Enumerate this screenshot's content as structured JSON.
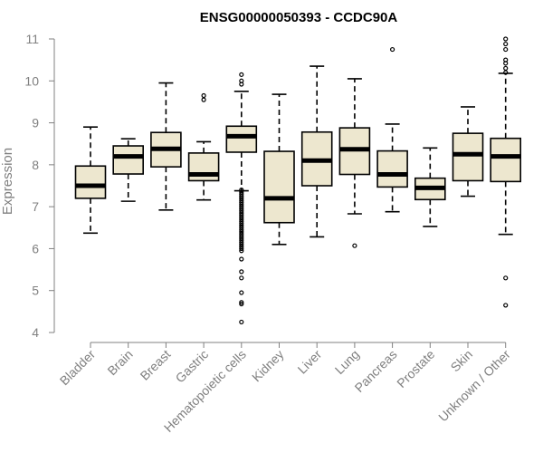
{
  "chart_data": {
    "type": "boxplot",
    "title": "ENSG00000050393 - CCDC90A",
    "xlabel": "",
    "ylabel": "Expression",
    "ylim": [
      4,
      11
    ],
    "yticks": [
      4,
      5,
      6,
      7,
      8,
      9,
      10,
      11
    ],
    "grid": false,
    "box_fill": "#EDE7CF",
    "axis_color": "#808080",
    "categories": [
      "Bladder",
      "Brain",
      "Breast",
      "Gastric",
      "Hematopoietic cells",
      "Kidney",
      "Liver",
      "Lung",
      "Pancreas",
      "Prostate",
      "Skin",
      "Unknown / Other"
    ],
    "boxes": [
      {
        "category": "Bladder",
        "whisker_low": 6.37,
        "q1": 7.2,
        "median": 7.5,
        "q3": 7.97,
        "whisker_high": 8.9,
        "outliers": []
      },
      {
        "category": "Brain",
        "whisker_low": 7.13,
        "q1": 7.78,
        "median": 8.2,
        "q3": 8.45,
        "whisker_high": 8.62,
        "outliers": []
      },
      {
        "category": "Breast",
        "whisker_low": 6.92,
        "q1": 7.95,
        "median": 8.38,
        "q3": 8.77,
        "whisker_high": 9.95,
        "outliers": []
      },
      {
        "category": "Gastric",
        "whisker_low": 7.16,
        "q1": 7.62,
        "median": 7.77,
        "q3": 8.28,
        "whisker_high": 8.55,
        "outliers": [
          9.55,
          9.65
        ]
      },
      {
        "category": "Hematopoietic cells",
        "whisker_low": 7.38,
        "q1": 8.3,
        "median": 8.68,
        "q3": 8.92,
        "whisker_high": 9.75,
        "outliers": [
          10.15,
          10.0,
          9.92,
          7.4,
          7.35,
          7.3,
          7.25,
          7.2,
          7.15,
          7.1,
          7.05,
          7.0,
          6.95,
          6.9,
          6.85,
          6.8,
          6.75,
          6.7,
          6.65,
          6.6,
          6.55,
          6.5,
          6.45,
          6.4,
          6.35,
          6.3,
          6.25,
          6.2,
          6.15,
          6.1,
          6.05,
          6.0,
          5.95,
          5.75,
          5.45,
          5.3,
          4.95,
          4.72,
          4.68,
          4.25
        ]
      },
      {
        "category": "Kidney",
        "whisker_low": 6.1,
        "q1": 6.62,
        "median": 7.2,
        "q3": 8.32,
        "whisker_high": 9.68,
        "outliers": []
      },
      {
        "category": "Liver",
        "whisker_low": 6.28,
        "q1": 7.5,
        "median": 8.1,
        "q3": 8.78,
        "whisker_high": 10.35,
        "outliers": []
      },
      {
        "category": "Lung",
        "whisker_low": 6.83,
        "q1": 7.77,
        "median": 8.37,
        "q3": 8.88,
        "whisker_high": 10.05,
        "outliers": [
          6.07
        ]
      },
      {
        "category": "Pancreas",
        "whisker_low": 6.88,
        "q1": 7.47,
        "median": 7.77,
        "q3": 8.33,
        "whisker_high": 8.97,
        "outliers": [
          10.75
        ]
      },
      {
        "category": "Prostate",
        "whisker_low": 6.53,
        "q1": 7.17,
        "median": 7.45,
        "q3": 7.68,
        "whisker_high": 8.4,
        "outliers": []
      },
      {
        "category": "Skin",
        "whisker_low": 7.25,
        "q1": 7.62,
        "median": 8.25,
        "q3": 8.75,
        "whisker_high": 9.38,
        "outliers": []
      },
      {
        "category": "Unknown / Other",
        "whisker_low": 6.34,
        "q1": 7.6,
        "median": 8.2,
        "q3": 8.63,
        "whisker_high": 10.18,
        "outliers": [
          11.0,
          10.88,
          10.75,
          10.5,
          10.42,
          10.3,
          10.2,
          5.3,
          4.65
        ]
      }
    ]
  }
}
